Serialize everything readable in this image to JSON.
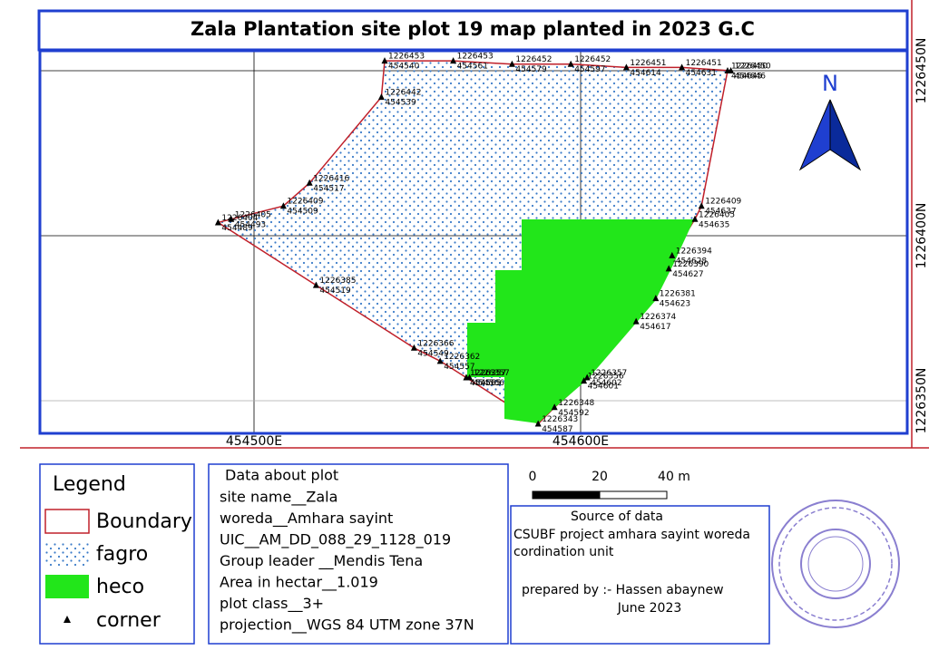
{
  "title": "Zala Plantation site plot 19 map planted in 2023 G.C",
  "map": {
    "corners": [
      {
        "northing": 1226453,
        "easting": 454540
      },
      {
        "northing": 1226453,
        "easting": 454561
      },
      {
        "northing": 1226452,
        "easting": 454579
      },
      {
        "northing": 1226452,
        "easting": 454597
      },
      {
        "northing": 1226451,
        "easting": 454614
      },
      {
        "northing": 1226451,
        "easting": 454631
      },
      {
        "northing": 1226450,
        "easting": 454646
      },
      {
        "northing": 1226450,
        "easting": 454645
      },
      {
        "northing": 1226409,
        "easting": 454637
      },
      {
        "northing": 1226405,
        "easting": 454635
      },
      {
        "northing": 1226394,
        "easting": 454628
      },
      {
        "northing": 1226390,
        "easting": 454627
      },
      {
        "northing": 1226381,
        "easting": 454623
      },
      {
        "northing": 1226374,
        "easting": 454617
      },
      {
        "northing": 1226357,
        "easting": 454602
      },
      {
        "northing": 1226356,
        "easting": 454601
      },
      {
        "northing": 1226348,
        "easting": 454592
      },
      {
        "northing": 1226343,
        "easting": 454587
      },
      {
        "northing": 1226357,
        "easting": 454565
      },
      {
        "northing": 1226357,
        "easting": 454566
      },
      {
        "northing": 1226357,
        "easting": 454565
      },
      {
        "northing": 1226362,
        "easting": 454557
      },
      {
        "northing": 1226366,
        "easting": 454549
      },
      {
        "northing": 1226385,
        "easting": 454519
      },
      {
        "northing": 1226404,
        "easting": 454489
      },
      {
        "northing": 1226405,
        "easting": 454493
      },
      {
        "northing": 1226409,
        "easting": 454509
      },
      {
        "northing": 1226416,
        "easting": 454517
      },
      {
        "northing": 1226442,
        "easting": 454539
      }
    ],
    "eastings": [
      {
        "value": 454500,
        "label": "454500E"
      },
      {
        "value": 454600,
        "label": "454600E"
      }
    ],
    "northings": [
      {
        "value": 1226450,
        "label": "1226450N"
      },
      {
        "value": 1226400,
        "label": "1226400N"
      },
      {
        "value": 1226350,
        "label": "1226350N"
      }
    ],
    "north_label": "N"
  },
  "legend": {
    "title": "Legend",
    "items": [
      "Boundary",
      "fagro",
      "heco",
      "corner"
    ]
  },
  "plot_info": {
    "title": "Data about plot",
    "lines": [
      "site name__Zala",
      "woreda__Amhara sayint",
      "UIC__AM_DD_088_29_1128_019",
      "Group leader __Mendis Tena",
      "Area in hectar__1.019",
      "plot class__3+",
      "projection__WGS 84 UTM zone 37N"
    ]
  },
  "scale": {
    "labels": [
      "0",
      "20",
      "40 m"
    ]
  },
  "source": {
    "lines": [
      "Source of data",
      "CSUBF project amhara sayint woreda",
      "cordination unit",
      "prepared by :- Hassen abaynew",
      "June 2023"
    ]
  }
}
